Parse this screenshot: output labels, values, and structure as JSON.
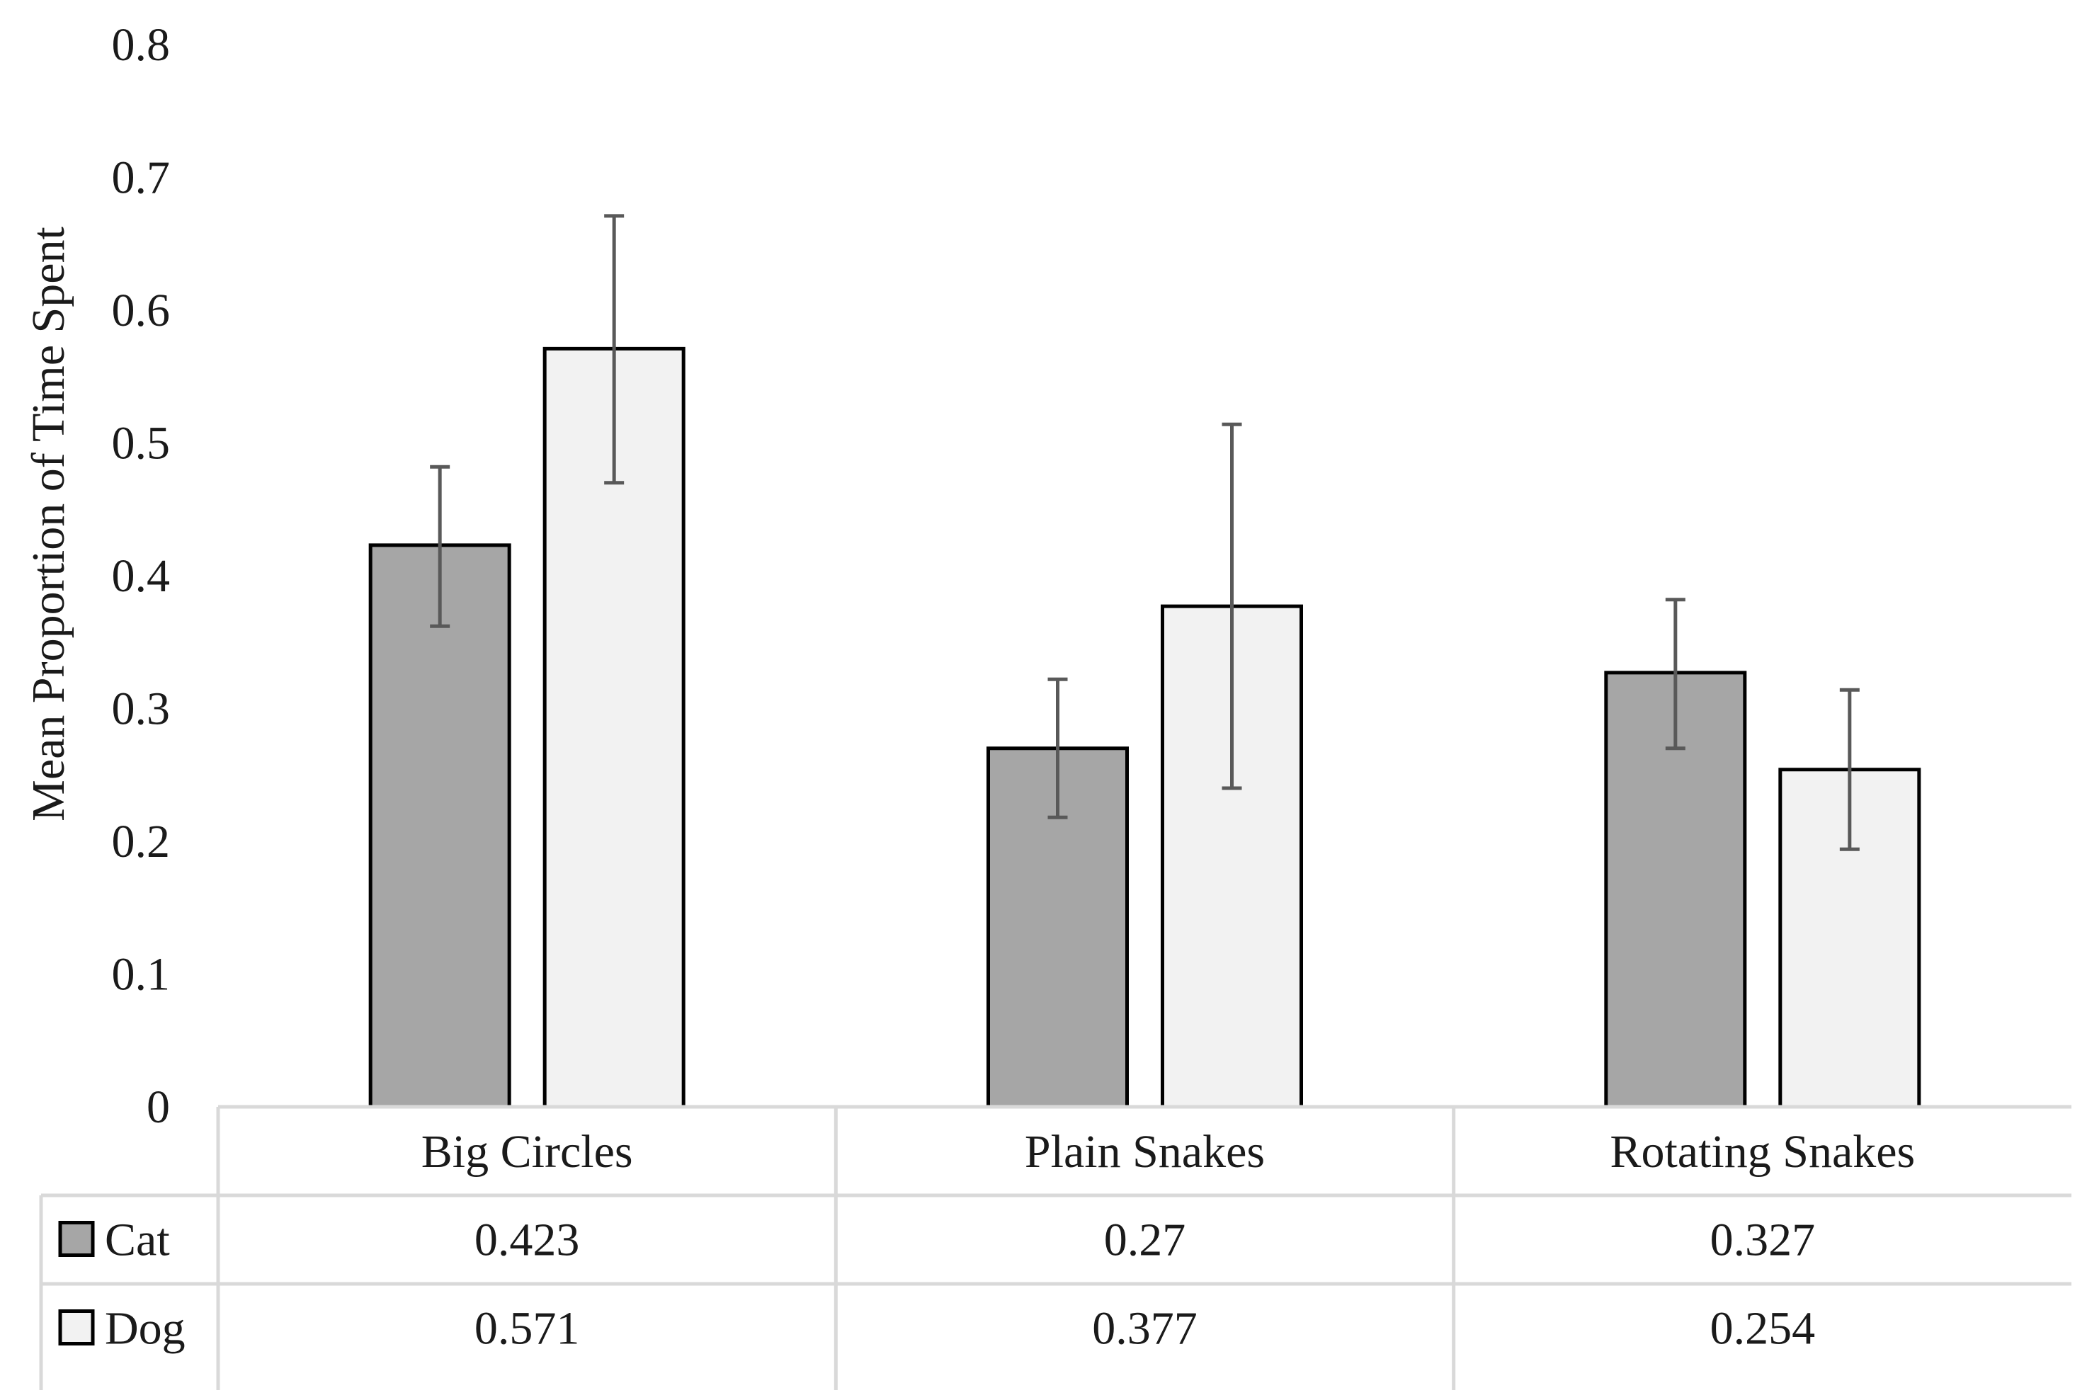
{
  "chart_data": {
    "type": "bar",
    "ylabel": "Mean Proportion of Time Spent",
    "ylim": [
      0,
      0.8
    ],
    "yticks": [
      "0",
      "0.1",
      "0.2",
      "0.3",
      "0.4",
      "0.5",
      "0.6",
      "0.7",
      "0.8"
    ],
    "categories": [
      "Big Circles",
      "Plain Snakes",
      "Rotating Snakes"
    ],
    "series": [
      {
        "name": "Cat",
        "color": "#a6a6a6",
        "values": [
          0.423,
          0.27,
          0.327
        ],
        "value_labels": [
          "0.423",
          "0.27",
          "0.327"
        ],
        "error_low": [
          0.362,
          0.218,
          0.27
        ],
        "error_high": [
          0.482,
          0.322,
          0.382
        ]
      },
      {
        "name": "Dog",
        "color": "#f2f2f2",
        "values": [
          0.571,
          0.377,
          0.254
        ],
        "value_labels": [
          "0.571",
          "0.377",
          "0.254"
        ],
        "error_low": [
          0.47,
          0.24,
          0.194
        ],
        "error_high": [
          0.671,
          0.514,
          0.314
        ]
      }
    ],
    "data_table": true,
    "grid": false
  }
}
